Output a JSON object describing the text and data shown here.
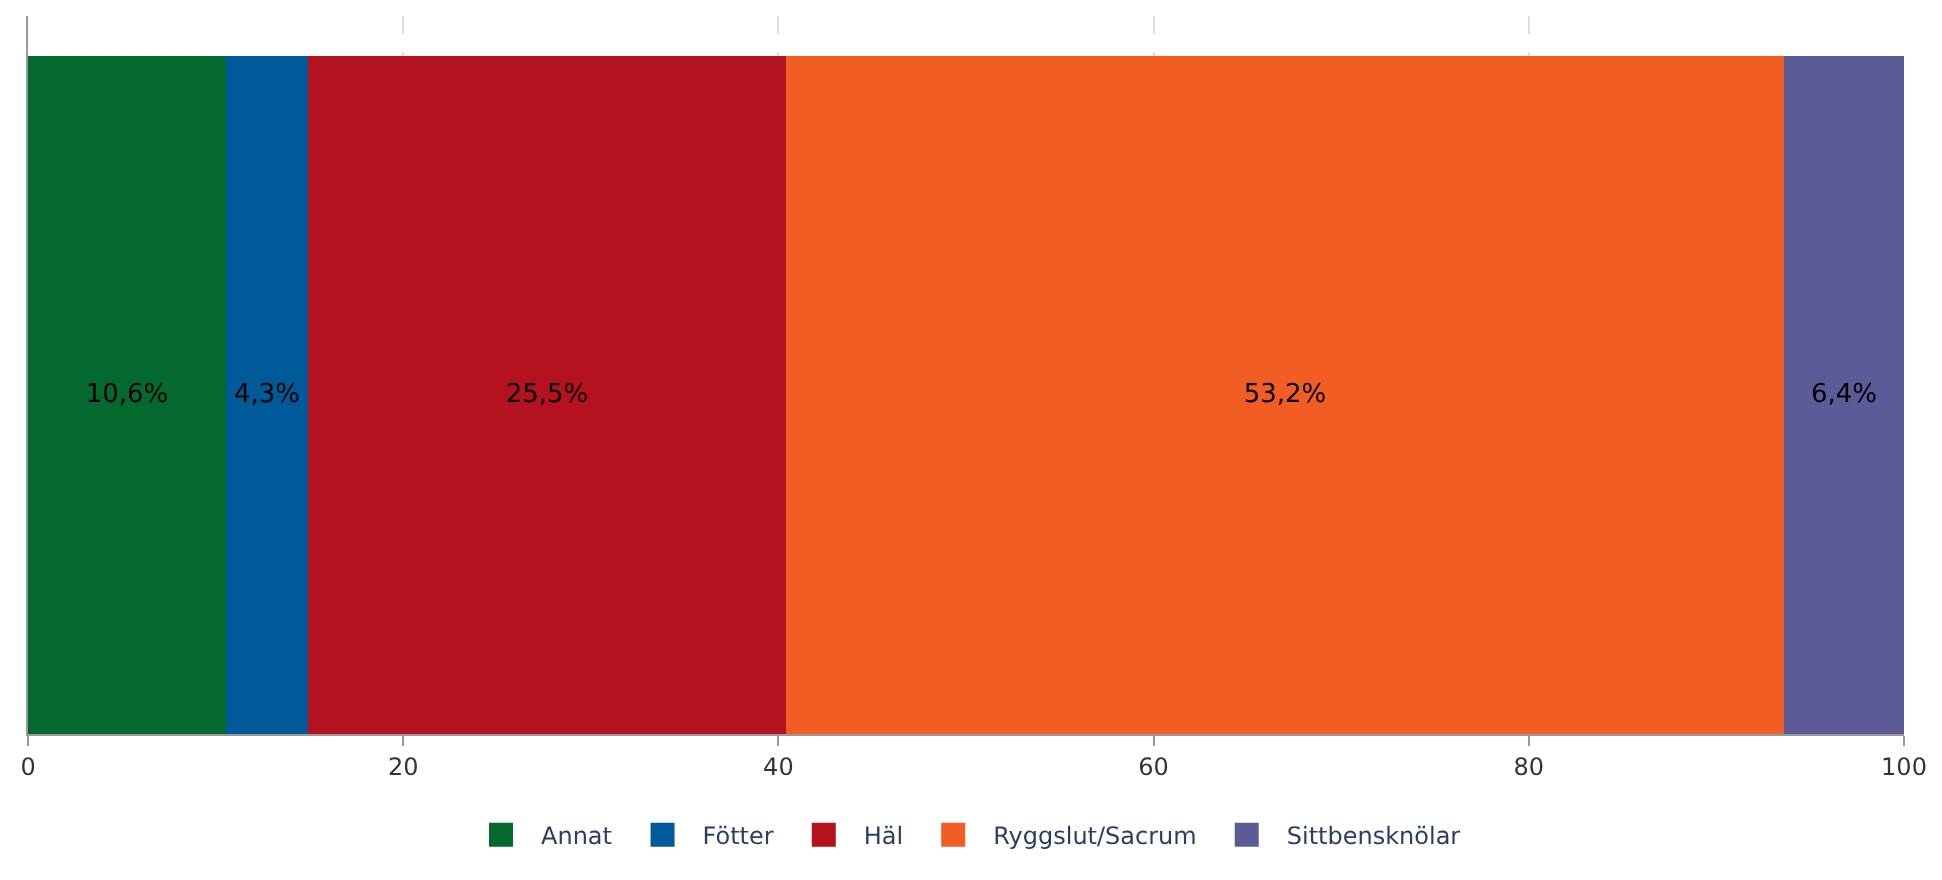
{
  "chart_data": {
    "type": "bar",
    "orientation": "horizontal",
    "stacked": true,
    "categories": [
      null
    ],
    "series": [
      {
        "name": "Annat",
        "color": "#03692e",
        "values": [
          10.6
        ],
        "value_labels": [
          "10,6%"
        ]
      },
      {
        "name": "Fötter",
        "color": "#005a9a",
        "values": [
          4.3
        ],
        "value_labels": [
          "4,3%"
        ]
      },
      {
        "name": "Häl",
        "color": "#b5121f",
        "values": [
          25.5
        ],
        "value_labels": [
          "25,5%"
        ]
      },
      {
        "name": "Ryggslut/Sacrum",
        "color": "#f15d23",
        "values": [
          53.2
        ],
        "value_labels": [
          "53,2%"
        ]
      },
      {
        "name": "Sittbensknölar",
        "color": "#5d5b97",
        "values": [
          6.4
        ],
        "value_labels": [
          "6,4%"
        ]
      }
    ],
    "xlim": [
      0,
      100
    ],
    "xticks": [
      0,
      20,
      40,
      60,
      80,
      100
    ],
    "grid": "x",
    "legend": "bottom"
  }
}
